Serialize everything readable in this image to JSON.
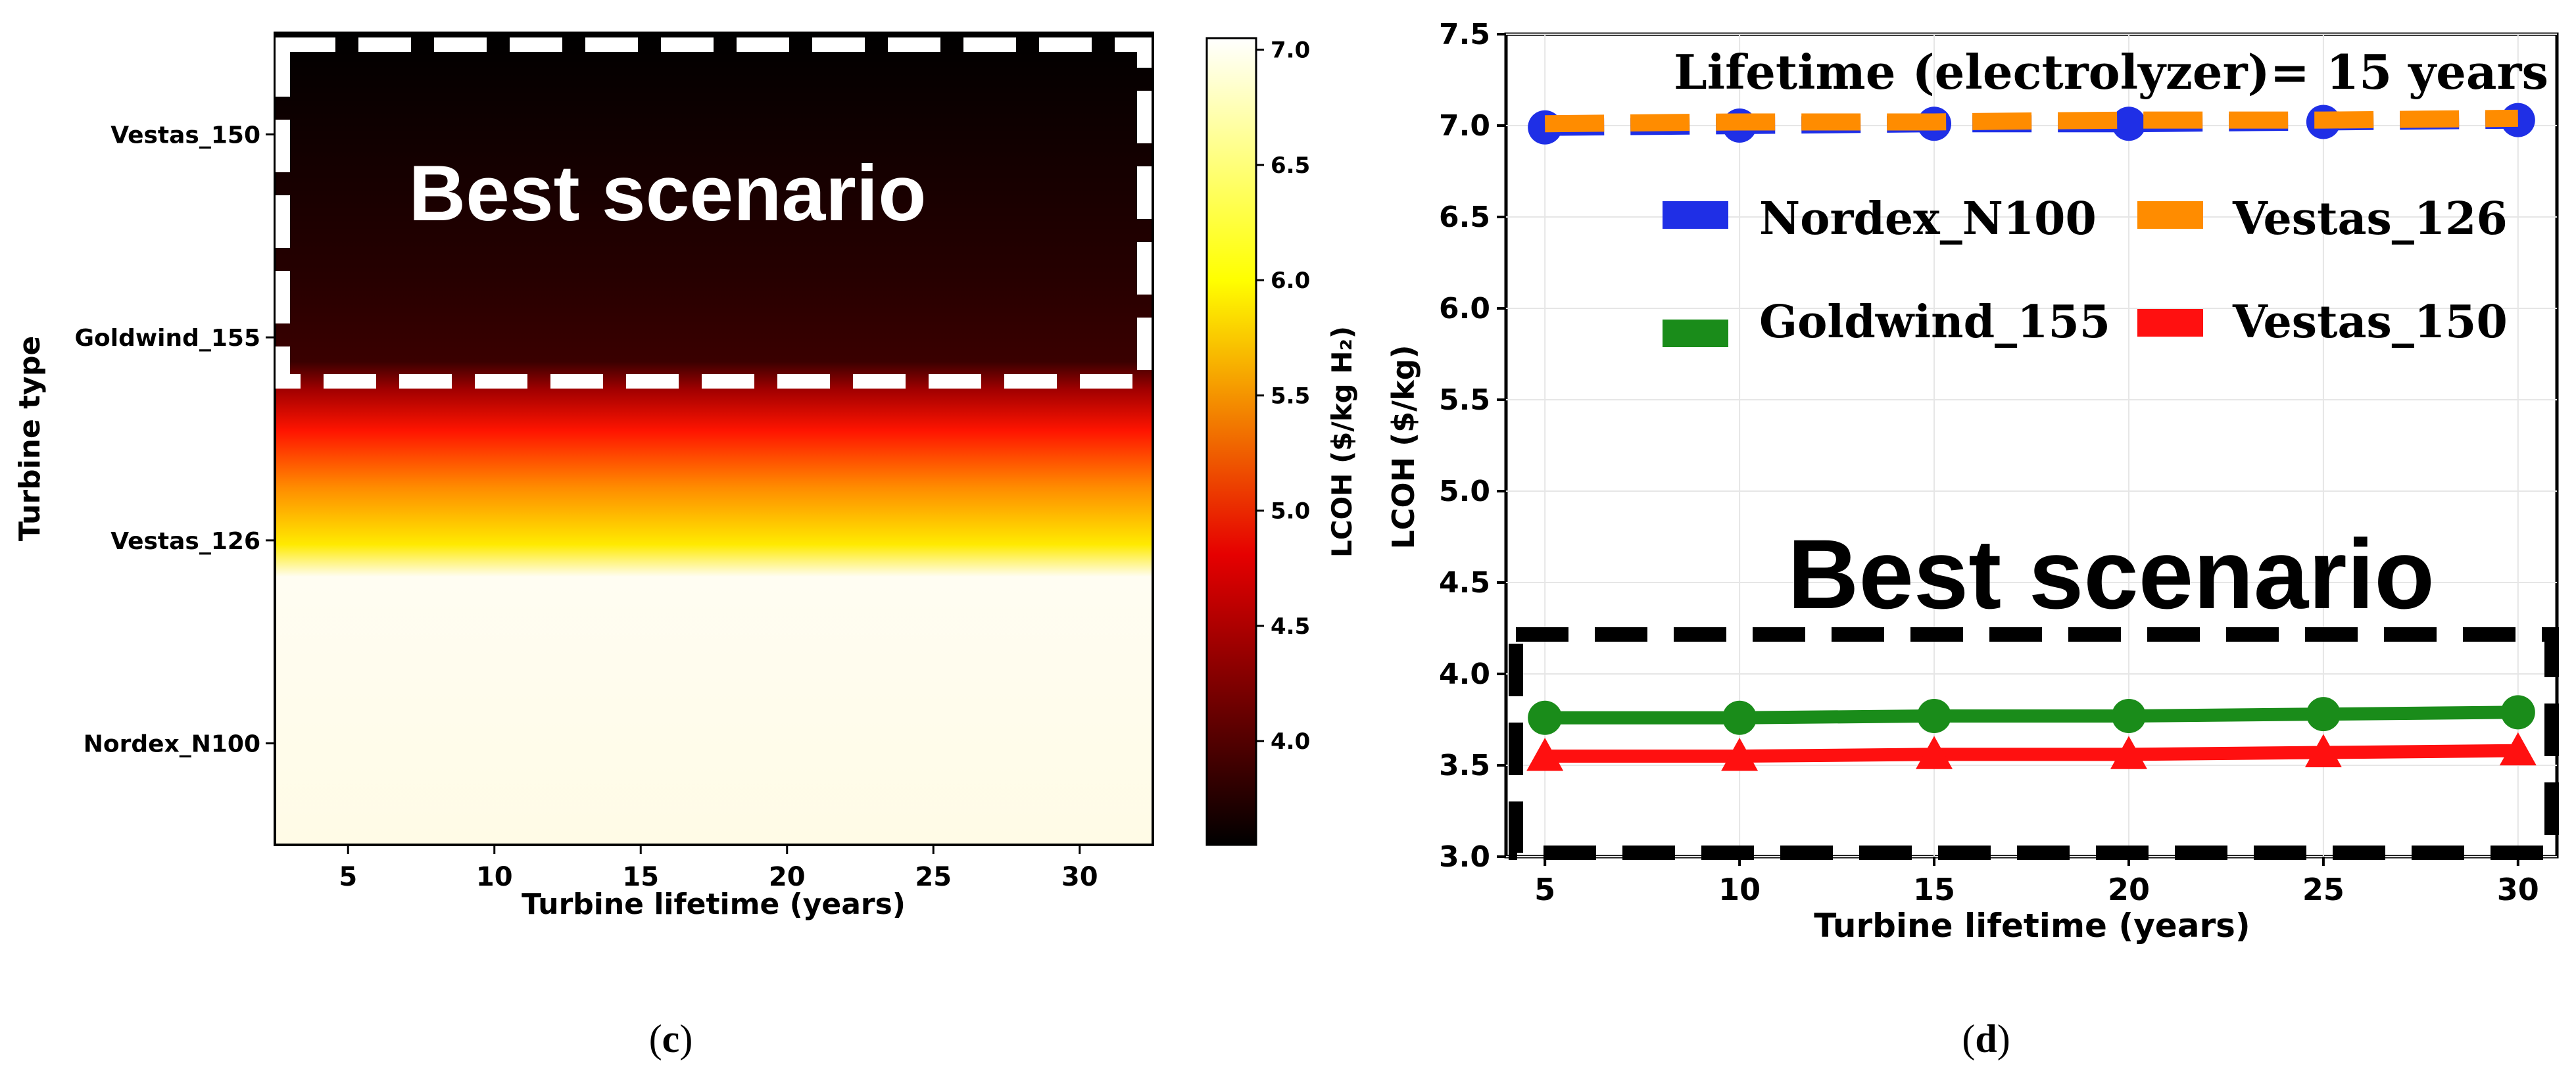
{
  "chart_data": [
    {
      "type": "heatmap",
      "panel_label": "c",
      "xlabel": "Turbine lifetime (years)",
      "ylabel": "Turbine type",
      "x_ticks": [
        5,
        10,
        15,
        20,
        25,
        30
      ],
      "xlim": [
        2.5,
        32.5
      ],
      "y_categories": [
        "Vestas_150",
        "Goldwind_155",
        "Vestas_126",
        "Nordex_N100"
      ],
      "values": [
        [
          3.55,
          3.55,
          3.56,
          3.56,
          3.57,
          3.58
        ],
        [
          3.76,
          3.76,
          3.77,
          3.77,
          3.78,
          3.79
        ],
        [
          7.0,
          7.0,
          7.01,
          7.01,
          7.02,
          7.03
        ],
        [
          6.98,
          6.99,
          7.0,
          7.0,
          7.01,
          7.02
        ]
      ],
      "colorbar": {
        "label": "LCOH ($/kg H₂)",
        "colormap": "hot",
        "range": [
          3.55,
          7.05
        ],
        "ticks": [
          "4.0",
          "4.5",
          "5.0",
          "5.5",
          "6.0",
          "6.5",
          "7.0"
        ]
      },
      "annotation": "Best scenario"
    },
    {
      "type": "line",
      "panel_label": "d",
      "title": "Lifetime (electrolyzer)= 15 years",
      "xlabel": "Turbine lifetime (years)",
      "ylabel": "LCOH ($/kg)",
      "x": [
        5,
        10,
        15,
        20,
        25,
        30
      ],
      "xlim": [
        4,
        31
      ],
      "ylim": [
        3.0,
        7.5
      ],
      "y_ticks": [
        "3.0",
        "3.5",
        "4.0",
        "4.5",
        "5.0",
        "5.5",
        "6.0",
        "6.5",
        "7.0",
        "7.5"
      ],
      "series": [
        {
          "name": "Nordex_N100",
          "color": "#1f2fe6",
          "marker": "circle",
          "linestyle": "dashed",
          "values": [
            6.99,
            7.0,
            7.01,
            7.01,
            7.02,
            7.03
          ]
        },
        {
          "name": "Vestas_126",
          "color": "#ff8c00",
          "marker": "none",
          "linestyle": "dashed",
          "values": [
            7.01,
            7.02,
            7.02,
            7.03,
            7.03,
            7.04
          ]
        },
        {
          "name": "Goldwind_155",
          "color": "#1a8c1a",
          "marker": "circle",
          "linestyle": "solid",
          "values": [
            3.76,
            3.76,
            3.77,
            3.77,
            3.78,
            3.79
          ]
        },
        {
          "name": "Vestas_150",
          "color": "#ff1010",
          "marker": "triangle",
          "linestyle": "solid",
          "values": [
            3.55,
            3.55,
            3.56,
            3.56,
            3.57,
            3.58
          ]
        }
      ],
      "annotation": "Best scenario"
    }
  ]
}
